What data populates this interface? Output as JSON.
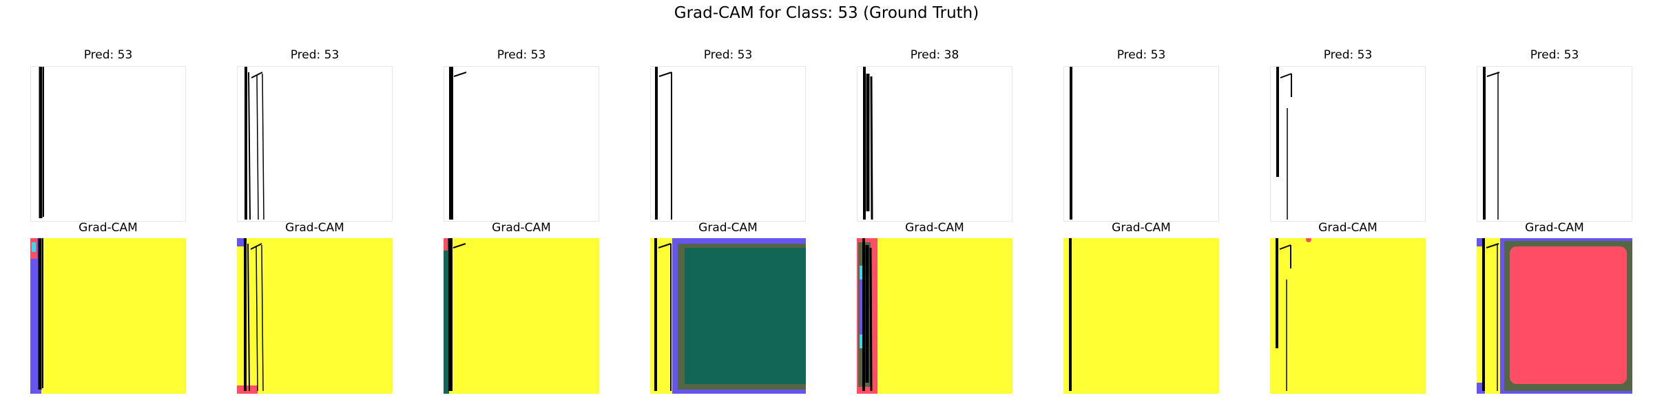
{
  "title": "Grad-CAM for Class: 53 (Ground Truth)",
  "columns": [
    {
      "pred_label": "Pred: 53",
      "cam_label": "Grad-CAM"
    },
    {
      "pred_label": "Pred: 53",
      "cam_label": "Grad-CAM"
    },
    {
      "pred_label": "Pred: 53",
      "cam_label": "Grad-CAM"
    },
    {
      "pred_label": "Pred: 53",
      "cam_label": "Grad-CAM"
    },
    {
      "pred_label": "Pred: 38",
      "cam_label": "Grad-CAM"
    },
    {
      "pred_label": "Pred: 53",
      "cam_label": "Grad-CAM"
    },
    {
      "pred_label": "Pred: 53",
      "cam_label": "Grad-CAM"
    },
    {
      "pred_label": "Pred: 53",
      "cam_label": "Grad-CAM"
    }
  ],
  "colors": {
    "heatmap_base": "#ffff33",
    "heatmap_green": "#116655",
    "heatmap_red": "#ff4d66",
    "heatmap_blue": "#6655ee",
    "stroke": "#000000"
  }
}
